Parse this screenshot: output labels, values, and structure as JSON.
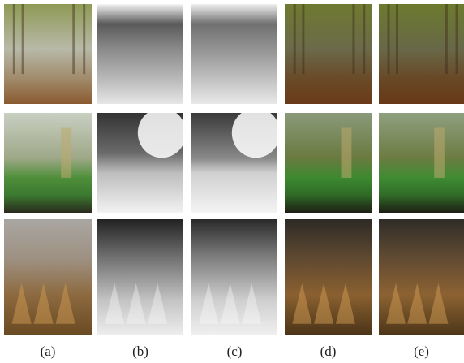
{
  "figure": {
    "labels": [
      "(a)",
      "(b)",
      "(c)",
      "(d)",
      "(e)"
    ]
  }
}
